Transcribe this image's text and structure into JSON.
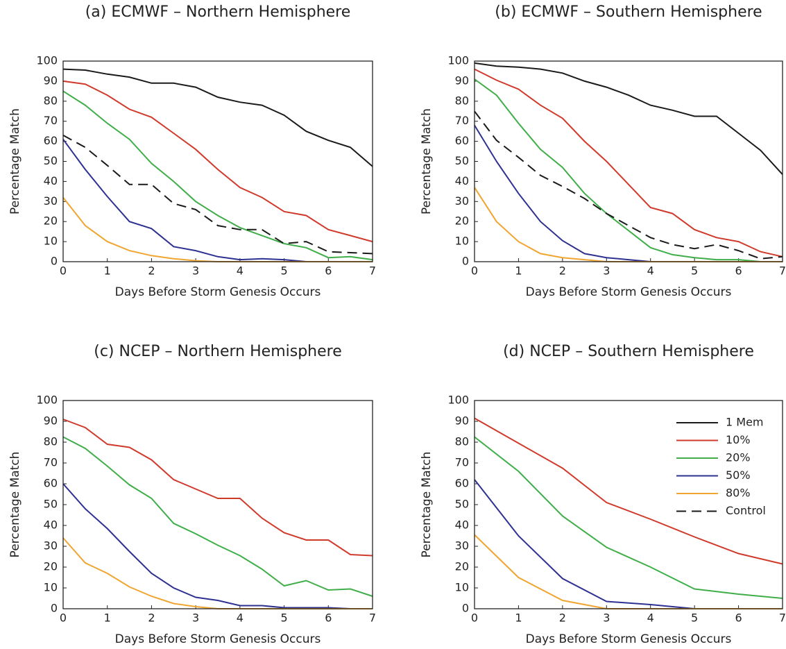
{
  "chart_data": [
    {
      "type": "line",
      "title": "(a) ECMWF – Northern Hemisphere",
      "xlabel": "Days Before Storm Genesis Occurs",
      "ylabel": "Percentage Match",
      "x": [
        0,
        0.5,
        1,
        1.5,
        2,
        2.5,
        3,
        3.5,
        4,
        4.5,
        5,
        5.5,
        6,
        6.5,
        7
      ],
      "xlim": [
        0,
        7
      ],
      "ylim": [
        0,
        100
      ],
      "xticks": [
        0,
        1,
        2,
        3,
        4,
        5,
        6,
        7
      ],
      "yticks": [
        0,
        10,
        20,
        30,
        40,
        50,
        60,
        70,
        80,
        90,
        100
      ],
      "series": [
        {
          "name": "1 Mem",
          "color": "#1a1a1a",
          "dashed": false,
          "values": [
            96,
            95.5,
            93.5,
            92,
            89,
            89,
            87,
            82,
            79.5,
            78,
            73,
            65,
            60.5,
            57,
            47.5
          ]
        },
        {
          "name": "10%",
          "color": "#d03a2b",
          "dashed": false,
          "values": [
            90,
            88.5,
            83,
            76,
            72,
            64,
            56,
            46,
            37,
            32,
            25,
            23,
            16,
            13,
            10
          ]
        },
        {
          "name": "20%",
          "color": "#3fae49",
          "dashed": false,
          "values": [
            85,
            78,
            69,
            61,
            49,
            40,
            30,
            23,
            17,
            13,
            9,
            7,
            2,
            2.5,
            1
          ]
        },
        {
          "name": "50%",
          "color": "#2e3192",
          "dashed": false,
          "values": [
            61,
            46,
            32.5,
            20,
            16.5,
            7.5,
            5.5,
            2.5,
            1,
            1.5,
            1,
            0,
            0,
            0,
            0
          ]
        },
        {
          "name": "80%",
          "color": "#f0a530",
          "dashed": false,
          "values": [
            32,
            18,
            10,
            5.5,
            3,
            1.5,
            0.5,
            0,
            0,
            0,
            0,
            0,
            0,
            0,
            0
          ]
        },
        {
          "name": "Control",
          "color": "#1a1a1a",
          "dashed": true,
          "values": [
            63,
            57,
            48,
            38.5,
            38.5,
            29,
            26,
            18,
            16,
            16,
            9,
            10,
            5,
            4.5,
            4
          ]
        }
      ]
    },
    {
      "type": "line",
      "title": "(b) ECMWF – Southern Hemisphere",
      "xlabel": "Days Before Storm Genesis Occurs",
      "ylabel": "Percentage Match",
      "x": [
        0,
        0.5,
        1,
        1.5,
        2,
        2.5,
        3,
        3.5,
        4,
        4.5,
        5,
        5.5,
        6,
        6.5,
        7
      ],
      "xlim": [
        0,
        7
      ],
      "ylim": [
        0,
        100
      ],
      "xticks": [
        0,
        1,
        2,
        3,
        4,
        5,
        6,
        7
      ],
      "yticks": [
        0,
        10,
        20,
        30,
        40,
        50,
        60,
        70,
        80,
        90,
        100
      ],
      "series": [
        {
          "name": "1 Mem",
          "color": "#1a1a1a",
          "dashed": false,
          "values": [
            99,
            97.5,
            97,
            96,
            94,
            90,
            87,
            83,
            78,
            75.5,
            72.5,
            72.5,
            64,
            55.5,
            43.5
          ]
        },
        {
          "name": "10%",
          "color": "#d03a2b",
          "dashed": false,
          "values": [
            96,
            90.5,
            86,
            78,
            71.5,
            60,
            50,
            38.5,
            27,
            24,
            16,
            12,
            10,
            5,
            2.5
          ]
        },
        {
          "name": "20%",
          "color": "#3fae49",
          "dashed": false,
          "values": [
            91,
            83,
            69,
            56,
            47,
            34,
            24,
            15.5,
            7,
            3.5,
            2,
            1,
            1,
            0,
            0
          ]
        },
        {
          "name": "50%",
          "color": "#2e3192",
          "dashed": false,
          "values": [
            68,
            50,
            34,
            20,
            10.5,
            4,
            2,
            1,
            0,
            0,
            0,
            0,
            0,
            0,
            0
          ]
        },
        {
          "name": "80%",
          "color": "#f0a530",
          "dashed": false,
          "values": [
            37,
            20,
            10,
            4,
            2,
            1,
            0,
            0,
            0,
            0,
            0,
            0,
            0,
            0,
            0
          ]
        },
        {
          "name": "Control",
          "color": "#1a1a1a",
          "dashed": true,
          "values": [
            75,
            60.5,
            52,
            43,
            37.5,
            31.5,
            24,
            18,
            12,
            8.5,
            6.5,
            8.5,
            5.5,
            1.5,
            2.5
          ]
        }
      ]
    },
    {
      "type": "line",
      "title": "(c) NCEP – Northern Hemisphere",
      "xlabel": "Days Before Storm Genesis Occurs",
      "ylabel": "Percentage Match",
      "x": [
        0,
        0.5,
        1,
        1.5,
        2,
        2.5,
        3,
        3.5,
        4,
        4.5,
        5,
        5.5,
        6,
        6.5,
        7
      ],
      "xlim": [
        0,
        7
      ],
      "ylim": [
        0,
        100
      ],
      "xticks": [
        0,
        1,
        2,
        3,
        4,
        5,
        6,
        7
      ],
      "yticks": [
        0,
        10,
        20,
        30,
        40,
        50,
        60,
        70,
        80,
        90,
        100
      ],
      "series": [
        {
          "name": "10%",
          "color": "#d03a2b",
          "dashed": false,
          "values": [
            91,
            87,
            79,
            77.5,
            71.5,
            62,
            57.5,
            53,
            53,
            43.5,
            36.5,
            33,
            33,
            26,
            25.5
          ]
        },
        {
          "name": "20%",
          "color": "#3fae49",
          "dashed": false,
          "values": [
            82.5,
            77,
            68.5,
            59.5,
            53,
            41,
            36,
            30.5,
            25.5,
            19,
            11,
            13.5,
            9,
            9.5,
            6
          ]
        },
        {
          "name": "50%",
          "color": "#2e3192",
          "dashed": false,
          "values": [
            60,
            48,
            38.5,
            27.5,
            17,
            10,
            5.5,
            4,
            1.5,
            1.5,
            0.5,
            0.5,
            0.5,
            0,
            0
          ]
        },
        {
          "name": "80%",
          "color": "#f0a530",
          "dashed": false,
          "values": [
            34,
            22,
            17,
            10.5,
            6,
            2.5,
            1,
            0,
            0,
            0,
            0,
            0,
            0,
            0,
            0
          ]
        }
      ]
    },
    {
      "type": "line",
      "title": "(d) NCEP – Southern Hemisphere",
      "xlabel": "Days Before Storm Genesis Occurs",
      "ylabel": "Percentage Match",
      "x": [
        0,
        1,
        2,
        3,
        4,
        5,
        6,
        7
      ],
      "xlim": [
        0,
        7
      ],
      "ylim": [
        0,
        100
      ],
      "xticks": [
        0,
        1,
        2,
        3,
        4,
        5,
        6,
        7
      ],
      "yticks": [
        0,
        10,
        20,
        30,
        40,
        50,
        60,
        70,
        80,
        90,
        100
      ],
      "series": [
        {
          "name": "10%",
          "color": "#d03a2b",
          "dashed": false,
          "values": [
            91.5,
            79.5,
            67.5,
            51,
            43,
            34.5,
            26.5,
            21.5
          ]
        },
        {
          "name": "20%",
          "color": "#3fae49",
          "dashed": false,
          "values": [
            82.5,
            66,
            44.5,
            29.5,
            20,
            9.5,
            7,
            5
          ]
        },
        {
          "name": "50%",
          "color": "#2e3192",
          "dashed": false,
          "values": [
            62,
            35,
            14.5,
            3.5,
            2,
            0,
            0,
            0
          ]
        },
        {
          "name": "80%",
          "color": "#f0a530",
          "dashed": false,
          "values": [
            35.5,
            15,
            4,
            0,
            0,
            0,
            0,
            0
          ]
        }
      ],
      "legend_position": "upper right",
      "legend": [
        {
          "name": "1 Mem",
          "color": "#1a1a1a",
          "dashed": false
        },
        {
          "name": "10%",
          "color": "#d03a2b",
          "dashed": false
        },
        {
          "name": "20%",
          "color": "#3fae49",
          "dashed": false
        },
        {
          "name": "50%",
          "color": "#2e3192",
          "dashed": false
        },
        {
          "name": "80%",
          "color": "#f0a530",
          "dashed": false
        },
        {
          "name": "Control",
          "color": "#1a1a1a",
          "dashed": true
        }
      ]
    }
  ]
}
